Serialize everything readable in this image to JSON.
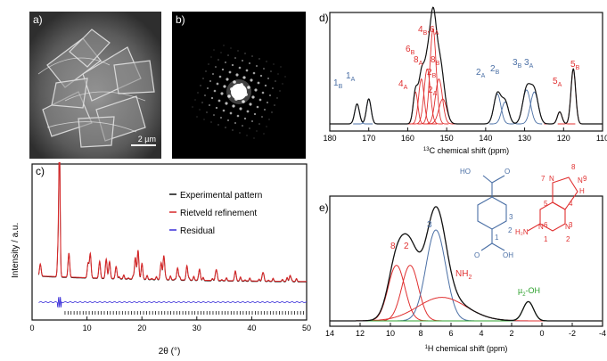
{
  "panels": {
    "a": {
      "label": "a)",
      "scalebar": "2 µm"
    },
    "b": {
      "label": "b)"
    },
    "c": {
      "label": "c)",
      "ylabel": "Intensity / a.u.",
      "xlabel": "2θ (°)",
      "xticks": [
        "0",
        "10",
        "20",
        "30",
        "40",
        "50"
      ],
      "legend": [
        "Experimental pattern",
        "Rietveld refinement",
        "Residual"
      ],
      "colors": {
        "experimental": "#111111",
        "rietveld": "#d62728",
        "residual": "#3b2fd9"
      }
    },
    "d": {
      "label": "d)",
      "xlabel_sup": "13",
      "xlabel_main": "C chemical shift (ppm)",
      "xticks": [
        "180",
        "170",
        "160",
        "150",
        "140",
        "130",
        "120",
        "110"
      ],
      "annotations": [
        {
          "text": "1",
          "sub": "B",
          "color": "#4a6fa5"
        },
        {
          "text": "1",
          "sub": "A",
          "color": "#4a6fa5"
        },
        {
          "text": "4",
          "sub": "B",
          "extra": ",6",
          "sub2": "A",
          "color": "#e03030"
        },
        {
          "text": "6",
          "sub": "B",
          "color": "#e03030"
        },
        {
          "text": "8",
          "sub": "A",
          "color": "#e03030"
        },
        {
          "text": "8",
          "sub": "B",
          "color": "#e03030"
        },
        {
          "text": "2",
          "sub": "B",
          "color": "#e03030"
        },
        {
          "text": "4",
          "sub": "A",
          "color": "#e03030"
        },
        {
          "text": "2",
          "sub": "A",
          "color": "#e03030"
        },
        {
          "text": "2",
          "sub": "A",
          "color": "#4a6fa5"
        },
        {
          "text": "2",
          "sub": "B",
          "color": "#4a6fa5"
        },
        {
          "text": "3",
          "sub": "B",
          "color": "#4a6fa5"
        },
        {
          "text": "3",
          "sub": "A",
          "color": "#4a6fa5"
        },
        {
          "text": "5",
          "sub": "A",
          "color": "#e03030"
        },
        {
          "text": "5",
          "sub": "B",
          "color": "#e03030"
        }
      ]
    },
    "e": {
      "label": "e)",
      "xlabel_sup": "1",
      "xlabel_main": "H chemical shift (ppm)",
      "xticks": [
        "14",
        "12",
        "10",
        "8",
        "6",
        "4",
        "2",
        "0",
        "-2",
        "-4"
      ],
      "peak_labels": [
        "8",
        "2",
        "3",
        "NH",
        "2",
        "µ",
        "2",
        "-OH"
      ],
      "structure1": {
        "ho": "HO",
        "o_top": "O",
        "o_bot": "O",
        "oh": "OH",
        "n1": "1",
        "n2": "2",
        "n3": "3"
      },
      "structure2": {
        "n7": "7",
        "n8": "8",
        "n9": "9",
        "n4": "4",
        "n5": "5",
        "n6": "6",
        "n3": "3",
        "n1": "1",
        "n2": "2",
        "nh2": "H₂N",
        "N_a": "N",
        "N_b": "N",
        "N_c": "N",
        "N_d": "N",
        "H": "H"
      }
    }
  },
  "chart_data": [
    {
      "type": "line",
      "panel": "c",
      "xlabel": "2θ (°)",
      "ylabel": "Intensity / a.u.",
      "xlim": [
        0,
        50
      ],
      "series": [
        {
          "name": "Experimental pattern",
          "x": [
            1.5,
            4.8,
            5.0,
            6.7,
            10.2,
            10.6,
            12.3,
            13.5,
            14.1,
            15.3,
            18.8,
            19.3,
            20.0,
            23.5,
            24.0,
            26.5,
            28.2,
            30.5,
            33.5,
            37.0,
            42.0,
            47.0
          ],
          "y": [
            0.1,
            0.3,
            1.0,
            0.2,
            0.12,
            0.2,
            0.14,
            0.16,
            0.14,
            0.1,
            0.18,
            0.24,
            0.12,
            0.14,
            0.2,
            0.1,
            0.12,
            0.09,
            0.08,
            0.07,
            0.06,
            0.05
          ]
        },
        {
          "name": "Rietveld refinement"
        },
        {
          "name": "Residual"
        }
      ]
    },
    {
      "type": "line",
      "panel": "d",
      "xlabel": "13C chemical shift (ppm)",
      "xlim": [
        180,
        110
      ],
      "series": [
        {
          "x": [
            180,
            173,
            170,
            160,
            157,
            155,
            153,
            151,
            145,
            138,
            135,
            129,
            127,
            121,
            117,
            110
          ],
          "y": [
            0.02,
            0.2,
            0.25,
            0.12,
            0.4,
            0.55,
            1.0,
            0.3,
            0.05,
            0.3,
            0.26,
            0.35,
            0.35,
            0.12,
            0.55,
            0.02
          ]
        }
      ]
    },
    {
      "type": "line",
      "panel": "e",
      "xlabel": "1H chemical shift (ppm)",
      "xlim": [
        14,
        -4
      ],
      "series": [
        {
          "x": [
            14,
            11,
            9.6,
            8.9,
            8.2,
            7.0,
            6.0,
            4.5,
            3.0,
            1.5,
            0.9,
            0.3,
            -4
          ],
          "y": [
            0.01,
            0.15,
            0.68,
            0.64,
            0.62,
            0.98,
            0.55,
            0.15,
            0.04,
            0.05,
            0.2,
            0.04,
            0.01
          ]
        }
      ]
    }
  ]
}
